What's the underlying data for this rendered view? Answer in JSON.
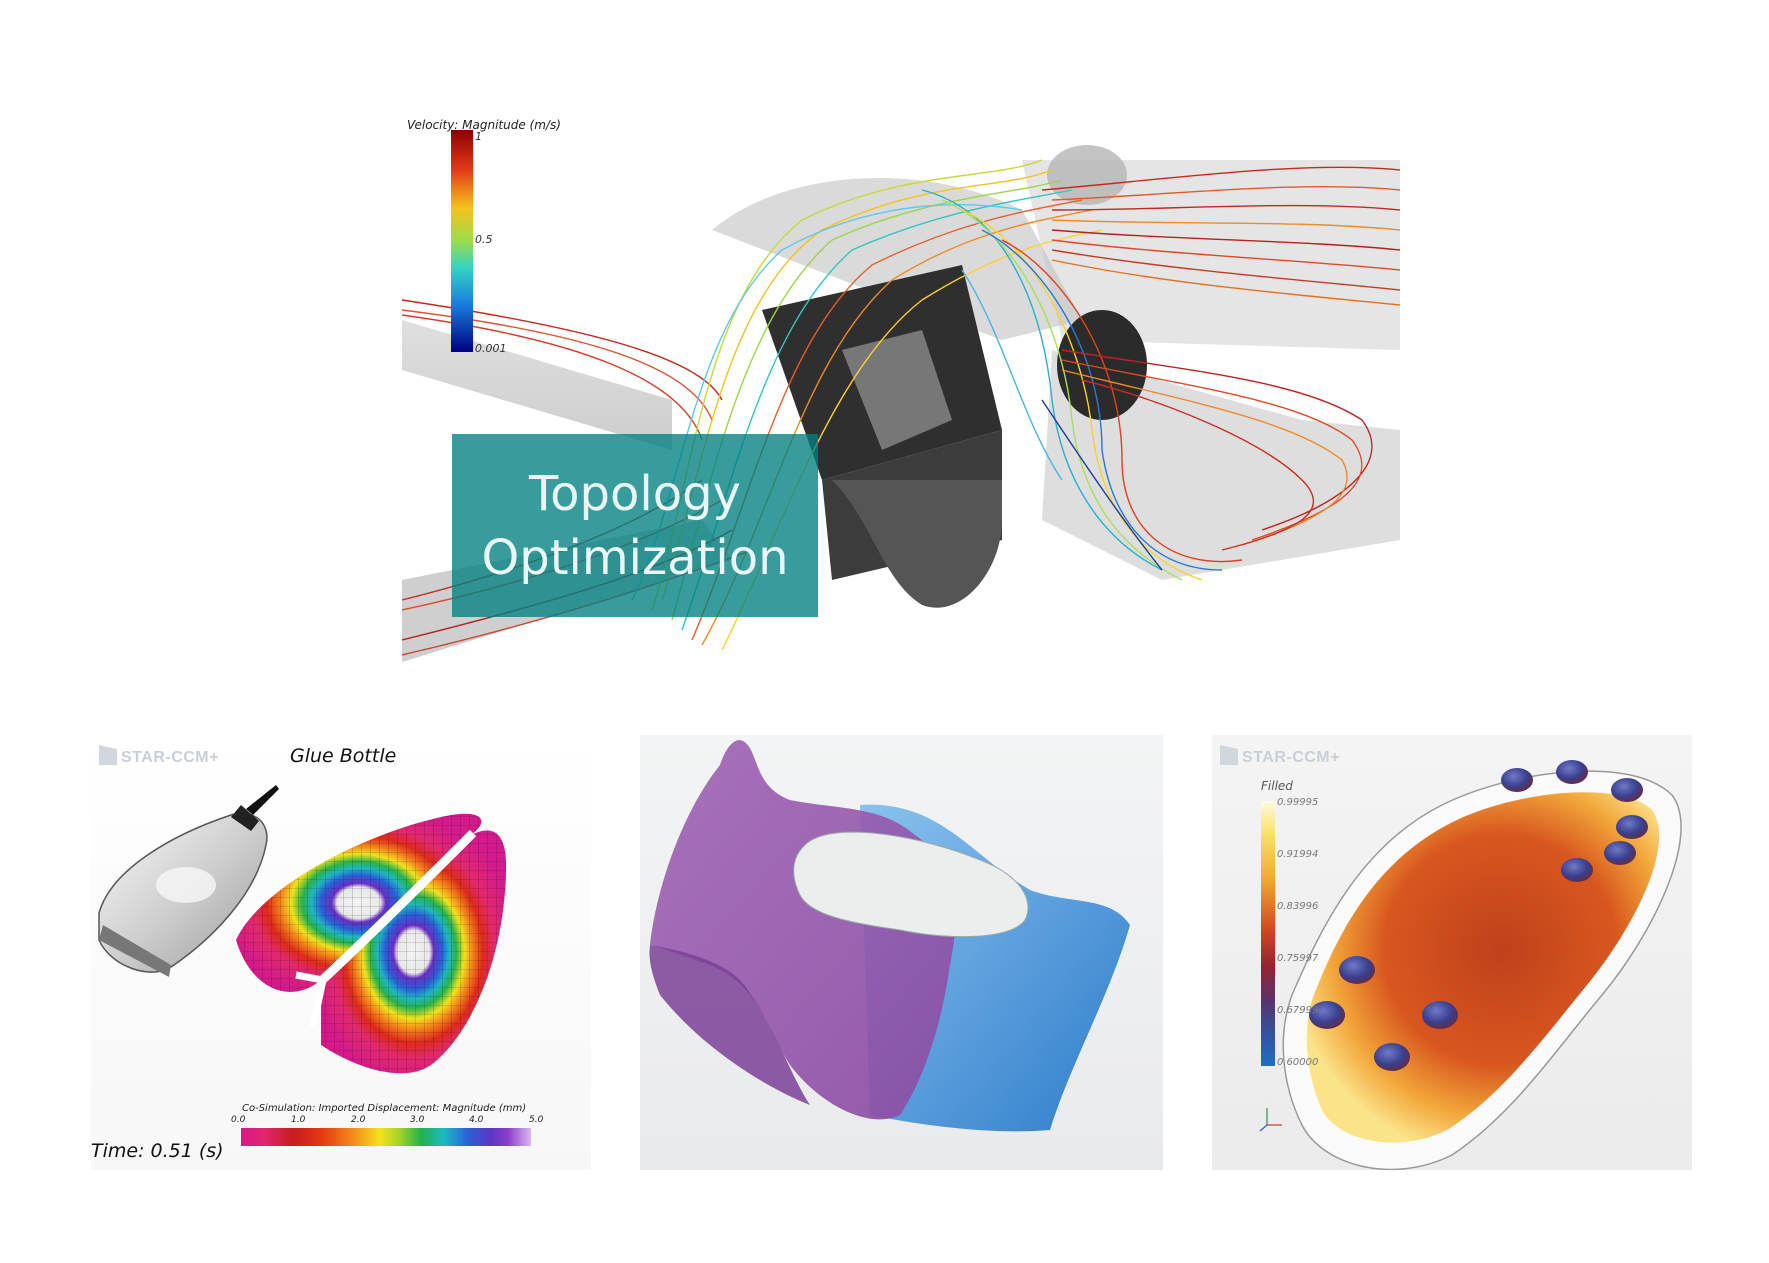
{
  "top_panel": {
    "legend": {
      "title": "Velocity: Magnitude (m/s)",
      "max_label": "1",
      "mid_label": "0.5",
      "min_label": "0.001"
    },
    "overlay_lines": [
      "Topology",
      "Optimization"
    ]
  },
  "glue_panel": {
    "logo": "STAR-CCM+",
    "title": "Glue Bottle",
    "colorbar_title": "Co-Simulation: Imported Displacement: Magnitude (mm)",
    "colorbar_ticks": [
      "0.0",
      "1.0",
      "2.0",
      "3.0",
      "4.0",
      "5.0"
    ],
    "time_label": "Time:  0.51 (s)"
  },
  "iron_panel": {},
  "sole_panel": {
    "logo": "STAR-CCM+",
    "legend_title": "Filled",
    "ticks": [
      "0.99995",
      "0.91994",
      "0.83996",
      "0.75997",
      "0.67999",
      "0.60000"
    ]
  },
  "colors": {
    "overlay": "#008080",
    "purple": "#9a5fb0",
    "blue": "#3a8ad6"
  }
}
